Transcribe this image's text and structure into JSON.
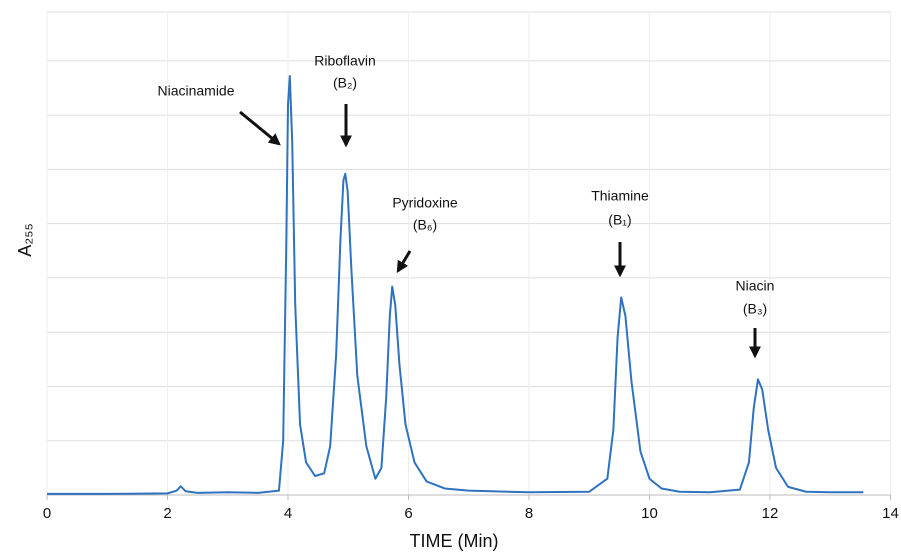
{
  "chart_data": {
    "type": "line",
    "x_label": "TIME (Min)",
    "y_label": "A₂₅₅",
    "xlim": [
      0,
      14
    ],
    "xticks": [
      0,
      2,
      4,
      6,
      8,
      10,
      12,
      14
    ],
    "ylim": [
      0,
      8.9
    ],
    "ygrid": [
      1,
      2,
      3,
      4,
      5,
      6,
      7,
      8
    ],
    "grid": true,
    "x": [
      0,
      1,
      2,
      2.15,
      2.22,
      2.3,
      2.5,
      3,
      3.5,
      3.85,
      3.92,
      3.97,
      4.0,
      4.03,
      4.07,
      4.12,
      4.2,
      4.3,
      4.45,
      4.6,
      4.7,
      4.8,
      4.87,
      4.92,
      4.95,
      4.99,
      5.05,
      5.15,
      5.3,
      5.45,
      5.55,
      5.63,
      5.69,
      5.73,
      5.78,
      5.85,
      5.95,
      6.1,
      6.3,
      6.6,
      7,
      8,
      9,
      9.3,
      9.4,
      9.47,
      9.53,
      9.6,
      9.7,
      9.85,
      10,
      10.2,
      10.5,
      11,
      11.5,
      11.65,
      11.73,
      11.8,
      11.87,
      11.97,
      12.1,
      12.3,
      12.6,
      13,
      13.55
    ],
    "series": [
      {
        "color": "#2f72c0",
        "values": [
          0.02,
          0.02,
          0.03,
          0.08,
          0.16,
          0.07,
          0.04,
          0.05,
          0.04,
          0.08,
          1.0,
          4.5,
          7.2,
          7.72,
          6.5,
          3.5,
          1.3,
          0.6,
          0.35,
          0.4,
          0.9,
          2.6,
          4.7,
          5.8,
          5.92,
          5.6,
          4.2,
          2.2,
          0.9,
          0.3,
          0.5,
          1.8,
          3.3,
          3.84,
          3.5,
          2.4,
          1.3,
          0.6,
          0.25,
          0.12,
          0.08,
          0.05,
          0.06,
          0.3,
          1.2,
          2.9,
          3.64,
          3.3,
          2.1,
          0.8,
          0.3,
          0.12,
          0.06,
          0.05,
          0.1,
          0.6,
          1.6,
          2.13,
          1.95,
          1.2,
          0.5,
          0.15,
          0.06,
          0.05,
          0.05
        ]
      }
    ],
    "annotations": [
      {
        "lines": [
          "Niacinamide"
        ]
      },
      {
        "lines": [
          "Riboflavin",
          "(B₂)"
        ]
      },
      {
        "lines": [
          "Pyridoxine",
          "(B₆)"
        ]
      },
      {
        "lines": [
          "Thiamine",
          "(B₁)"
        ]
      },
      {
        "lines": [
          "Niacin",
          "(B₃)"
        ]
      }
    ]
  }
}
